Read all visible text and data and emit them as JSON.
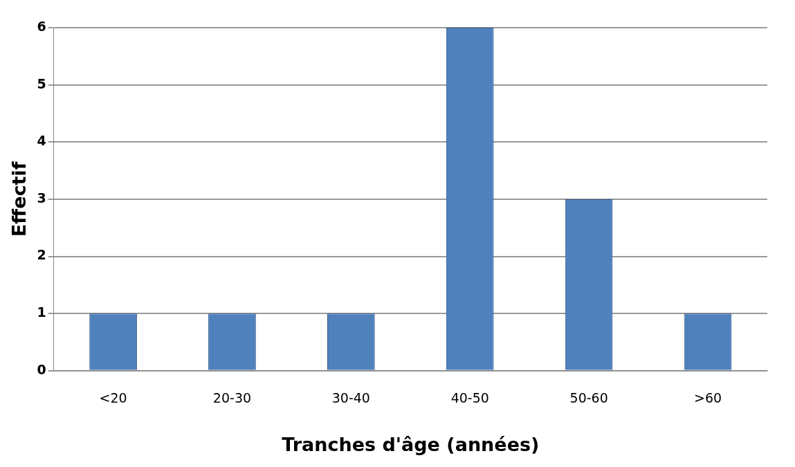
{
  "chart_data": {
    "type": "bar",
    "xlabel": "Tranches d'âge (années)",
    "ylabel": "Effectif",
    "categories": [
      "<20",
      "20-30",
      "30-40",
      "40-50",
      "50-60",
      ">60"
    ],
    "values": [
      1,
      1,
      1,
      6,
      3,
      1
    ],
    "color": "#4f81bd",
    "ylim": [
      0,
      6
    ],
    "yticks": [
      0,
      1,
      2,
      3,
      4,
      5,
      6
    ],
    "grid": "y",
    "legend": false
  }
}
